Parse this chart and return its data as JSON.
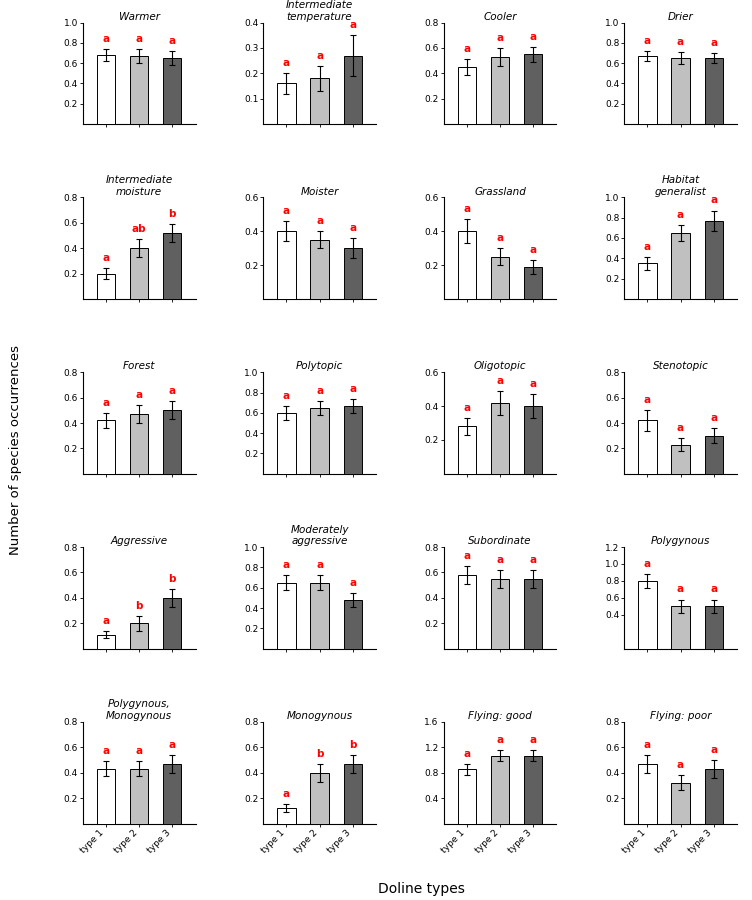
{
  "subplots": [
    {
      "title": "Warmer",
      "ylim": [
        0,
        1.0
      ],
      "yticks": [
        0.2,
        0.4,
        0.6,
        0.8,
        1.0
      ],
      "values": [
        0.68,
        0.67,
        0.65
      ],
      "errors": [
        0.06,
        0.07,
        0.07
      ],
      "letters": [
        "a",
        "a",
        "a"
      ]
    },
    {
      "title": "Intermediate\ntemperature",
      "ylim": [
        0,
        0.4
      ],
      "yticks": [
        0.1,
        0.2,
        0.3,
        0.4
      ],
      "values": [
        0.16,
        0.18,
        0.27
      ],
      "errors": [
        0.04,
        0.05,
        0.08
      ],
      "letters": [
        "a",
        "a",
        "a"
      ]
    },
    {
      "title": "Cooler",
      "ylim": [
        0,
        0.8
      ],
      "yticks": [
        0.2,
        0.4,
        0.6,
        0.8
      ],
      "values": [
        0.45,
        0.53,
        0.55
      ],
      "errors": [
        0.06,
        0.07,
        0.06
      ],
      "letters": [
        "a",
        "a",
        "a"
      ]
    },
    {
      "title": "Drier",
      "ylim": [
        0,
        1.0
      ],
      "yticks": [
        0.2,
        0.4,
        0.6,
        0.8,
        1.0
      ],
      "values": [
        0.67,
        0.65,
        0.65
      ],
      "errors": [
        0.05,
        0.06,
        0.05
      ],
      "letters": [
        "a",
        "a",
        "a"
      ]
    },
    {
      "title": "Intermediate\nmoisture",
      "ylim": [
        0,
        0.8
      ],
      "yticks": [
        0.2,
        0.4,
        0.6,
        0.8
      ],
      "values": [
        0.2,
        0.4,
        0.52
      ],
      "errors": [
        0.04,
        0.07,
        0.07
      ],
      "letters": [
        "a",
        "ab",
        "b"
      ]
    },
    {
      "title": "Moister",
      "ylim": [
        0,
        0.6
      ],
      "yticks": [
        0.2,
        0.4,
        0.6
      ],
      "values": [
        0.4,
        0.35,
        0.3
      ],
      "errors": [
        0.06,
        0.05,
        0.06
      ],
      "letters": [
        "a",
        "a",
        "a"
      ]
    },
    {
      "title": "Grassland",
      "ylim": [
        0,
        0.6
      ],
      "yticks": [
        0.2,
        0.4,
        0.6
      ],
      "values": [
        0.4,
        0.25,
        0.19
      ],
      "errors": [
        0.07,
        0.05,
        0.04
      ],
      "letters": [
        "a",
        "a",
        "a"
      ]
    },
    {
      "title": "Habitat\ngeneralist",
      "ylim": [
        0,
        1.0
      ],
      "yticks": [
        0.2,
        0.4,
        0.6,
        0.8,
        1.0
      ],
      "values": [
        0.35,
        0.65,
        0.77
      ],
      "errors": [
        0.06,
        0.08,
        0.1
      ],
      "letters": [
        "a",
        "a",
        "a"
      ]
    },
    {
      "title": "Forest",
      "ylim": [
        0,
        0.8
      ],
      "yticks": [
        0.2,
        0.4,
        0.6,
        0.8
      ],
      "values": [
        0.42,
        0.47,
        0.5
      ],
      "errors": [
        0.06,
        0.07,
        0.07
      ],
      "letters": [
        "a",
        "a",
        "a"
      ]
    },
    {
      "title": "Polytopic",
      "ylim": [
        0,
        1.0
      ],
      "yticks": [
        0.2,
        0.4,
        0.6,
        0.8,
        1.0
      ],
      "values": [
        0.6,
        0.65,
        0.67
      ],
      "errors": [
        0.07,
        0.07,
        0.07
      ],
      "letters": [
        "a",
        "a",
        "a"
      ]
    },
    {
      "title": "Oligotopic",
      "ylim": [
        0,
        0.6
      ],
      "yticks": [
        0.2,
        0.4,
        0.6
      ],
      "values": [
        0.28,
        0.42,
        0.4
      ],
      "errors": [
        0.05,
        0.07,
        0.07
      ],
      "letters": [
        "a",
        "a",
        "a"
      ]
    },
    {
      "title": "Stenotopic",
      "ylim": [
        0,
        0.8
      ],
      "yticks": [
        0.2,
        0.4,
        0.6,
        0.8
      ],
      "values": [
        0.42,
        0.23,
        0.3
      ],
      "errors": [
        0.08,
        0.05,
        0.06
      ],
      "letters": [
        "a",
        "a",
        "a"
      ]
    },
    {
      "title": "Aggressive",
      "ylim": [
        0,
        0.8
      ],
      "yticks": [
        0.2,
        0.4,
        0.6,
        0.8
      ],
      "values": [
        0.11,
        0.2,
        0.4
      ],
      "errors": [
        0.03,
        0.06,
        0.07
      ],
      "letters": [
        "a",
        "b",
        "b"
      ]
    },
    {
      "title": "Moderately\naggressive",
      "ylim": [
        0,
        1.0
      ],
      "yticks": [
        0.2,
        0.4,
        0.6,
        0.8,
        1.0
      ],
      "values": [
        0.65,
        0.65,
        0.48
      ],
      "errors": [
        0.07,
        0.07,
        0.07
      ],
      "letters": [
        "a",
        "a",
        "a"
      ]
    },
    {
      "title": "Subordinate",
      "ylim": [
        0,
        0.8
      ],
      "yticks": [
        0.2,
        0.4,
        0.6,
        0.8
      ],
      "values": [
        0.58,
        0.55,
        0.55
      ],
      "errors": [
        0.07,
        0.07,
        0.07
      ],
      "letters": [
        "a",
        "a",
        "a"
      ]
    },
    {
      "title": "Polygynous",
      "ylim": [
        0,
        1.2
      ],
      "yticks": [
        0.4,
        0.6,
        0.8,
        1.0,
        1.2
      ],
      "values": [
        0.8,
        0.5,
        0.5
      ],
      "errors": [
        0.08,
        0.08,
        0.08
      ],
      "letters": [
        "a",
        "a",
        "a"
      ]
    },
    {
      "title": "Polygynous,\nMonogynous",
      "ylim": [
        0,
        0.8
      ],
      "yticks": [
        0.2,
        0.4,
        0.6,
        0.8
      ],
      "values": [
        0.43,
        0.43,
        0.47
      ],
      "errors": [
        0.06,
        0.06,
        0.07
      ],
      "letters": [
        "a",
        "a",
        "a"
      ]
    },
    {
      "title": "Monogynous",
      "ylim": [
        0,
        0.8
      ],
      "yticks": [
        0.2,
        0.4,
        0.6,
        0.8
      ],
      "values": [
        0.12,
        0.4,
        0.47
      ],
      "errors": [
        0.03,
        0.07,
        0.07
      ],
      "letters": [
        "a",
        "b",
        "b"
      ]
    },
    {
      "title": "Flying: good",
      "ylim": [
        0,
        1.6
      ],
      "yticks": [
        0.4,
        0.8,
        1.2,
        1.6
      ],
      "values": [
        0.85,
        1.07,
        1.07
      ],
      "errors": [
        0.08,
        0.09,
        0.09
      ],
      "letters": [
        "a",
        "a",
        "a"
      ]
    },
    {
      "title": "Flying: poor",
      "ylim": [
        0,
        0.8
      ],
      "yticks": [
        0.2,
        0.4,
        0.6,
        0.8
      ],
      "values": [
        0.47,
        0.32,
        0.43
      ],
      "errors": [
        0.07,
        0.06,
        0.07
      ],
      "letters": [
        "a",
        "a",
        "a"
      ]
    }
  ],
  "bar_colors": [
    "white",
    "#c0c0c0",
    "#606060"
  ],
  "bar_edgecolor": "black",
  "bar_width": 0.55,
  "letter_color": "red",
  "xlabel": "Doline types",
  "ylabel": "Number of species occurrences",
  "xtick_labels": [
    "type 1",
    "type 2",
    "type 3"
  ],
  "nrows": 5,
  "ncols": 4
}
